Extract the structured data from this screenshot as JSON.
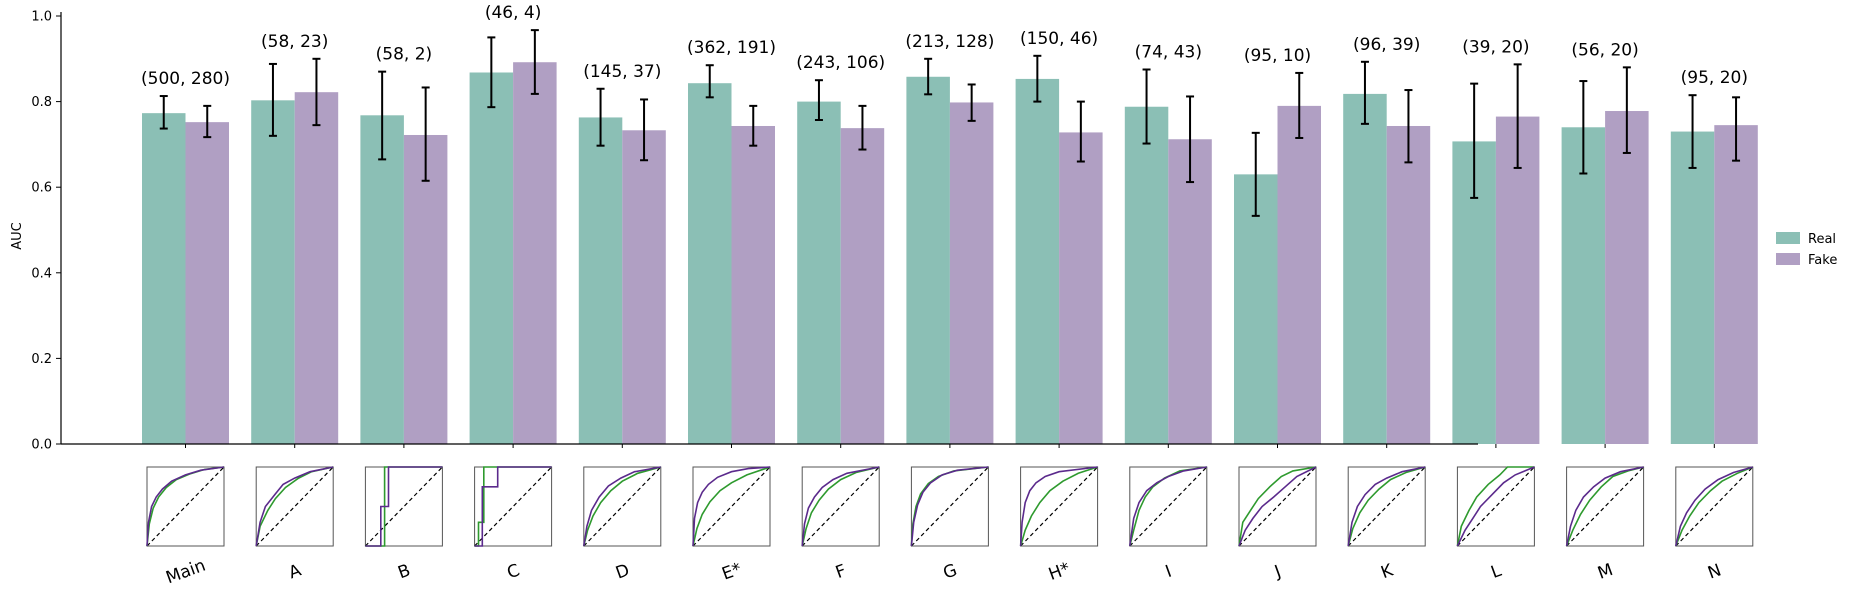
{
  "chart_data": {
    "type": "bar",
    "ylabel": "AUC",
    "xlabel": "",
    "ylim": [
      0,
      1.0
    ],
    "yticks": [
      "0.0",
      "0.2",
      "0.4",
      "0.6",
      "0.8",
      "1.0"
    ],
    "categories": [
      "Main",
      "A",
      "B",
      "C",
      "D",
      "E*",
      "F",
      "G",
      "H*",
      "I",
      "J",
      "K",
      "L",
      "M",
      "N"
    ],
    "annotations": [
      "(500, 280)",
      "(58, 23)",
      "(58, 2)",
      "(46, 4)",
      "(145, 37)",
      "(362, 191)",
      "(243, 106)",
      "(213, 128)",
      "(150, 46)",
      "(74, 43)",
      "(95, 10)",
      "(96, 39)",
      "(39, 20)",
      "(56, 20)",
      "(95, 20)"
    ],
    "series": [
      {
        "name": "Real",
        "color": "#8bbfb5",
        "values": [
          0.773,
          0.803,
          0.768,
          0.868,
          0.763,
          0.843,
          0.8,
          0.858,
          0.853,
          0.788,
          0.63,
          0.818,
          0.707,
          0.74,
          0.73
        ],
        "err_low": [
          0.737,
          0.72,
          0.665,
          0.787,
          0.697,
          0.81,
          0.757,
          0.817,
          0.8,
          0.702,
          0.533,
          0.748,
          0.575,
          0.632,
          0.645
        ],
        "err_high": [
          0.813,
          0.888,
          0.87,
          0.95,
          0.83,
          0.885,
          0.85,
          0.9,
          0.907,
          0.875,
          0.727,
          0.893,
          0.842,
          0.848,
          0.815
        ]
      },
      {
        "name": "Fake",
        "color": "#b09fc3",
        "values": [
          0.752,
          0.822,
          0.722,
          0.892,
          0.733,
          0.743,
          0.738,
          0.798,
          0.728,
          0.712,
          0.79,
          0.743,
          0.765,
          0.778,
          0.745
        ],
        "err_low": [
          0.717,
          0.745,
          0.615,
          0.818,
          0.663,
          0.697,
          0.688,
          0.755,
          0.66,
          0.612,
          0.715,
          0.658,
          0.645,
          0.68,
          0.662
        ],
        "err_high": [
          0.79,
          0.9,
          0.833,
          0.967,
          0.805,
          0.79,
          0.79,
          0.84,
          0.8,
          0.812,
          0.867,
          0.827,
          0.887,
          0.88,
          0.81
        ]
      }
    ],
    "legend_position": "right",
    "grid": false,
    "roc_insets": {
      "diagonal": "dashed",
      "curves": [
        {
          "fake": [
            [
              0,
              0
            ],
            [
              0.02,
              0.3
            ],
            [
              0.06,
              0.5
            ],
            [
              0.12,
              0.62
            ],
            [
              0.2,
              0.72
            ],
            [
              0.32,
              0.82
            ],
            [
              0.5,
              0.9
            ],
            [
              0.7,
              0.96
            ],
            [
              1,
              1
            ]
          ],
          "real": [
            [
              0,
              0
            ],
            [
              0.03,
              0.28
            ],
            [
              0.08,
              0.48
            ],
            [
              0.15,
              0.62
            ],
            [
              0.25,
              0.74
            ],
            [
              0.38,
              0.84
            ],
            [
              0.55,
              0.91
            ],
            [
              0.75,
              0.97
            ],
            [
              1,
              1
            ]
          ]
        },
        {
          "fake": [
            [
              0,
              0
            ],
            [
              0.05,
              0.3
            ],
            [
              0.12,
              0.5
            ],
            [
              0.25,
              0.66
            ],
            [
              0.35,
              0.78
            ],
            [
              0.5,
              0.86
            ],
            [
              0.7,
              0.94
            ],
            [
              1,
              1
            ]
          ],
          "real": [
            [
              0,
              0
            ],
            [
              0.05,
              0.25
            ],
            [
              0.15,
              0.45
            ],
            [
              0.25,
              0.6
            ],
            [
              0.38,
              0.74
            ],
            [
              0.55,
              0.86
            ],
            [
              0.72,
              0.94
            ],
            [
              1,
              1
            ]
          ]
        },
        {
          "fake": [
            [
              0,
              0
            ],
            [
              0.2,
              0
            ],
            [
              0.2,
              0.5
            ],
            [
              0.3,
              0.5
            ],
            [
              0.3,
              1
            ],
            [
              1,
              1
            ]
          ],
          "real": [
            [
              0,
              0
            ],
            [
              0.25,
              0
            ],
            [
              0.25,
              1
            ],
            [
              1,
              1
            ]
          ]
        },
        {
          "fake": [
            [
              0,
              0
            ],
            [
              0.1,
              0
            ],
            [
              0.1,
              0.75
            ],
            [
              0.3,
              0.75
            ],
            [
              0.3,
              1
            ],
            [
              1,
              1
            ]
          ],
          "real": [
            [
              0,
              0
            ],
            [
              0.05,
              0
            ],
            [
              0.05,
              0.3
            ],
            [
              0.12,
              0.3
            ],
            [
              0.12,
              1
            ],
            [
              1,
              1
            ]
          ]
        },
        {
          "fake": [
            [
              0,
              0
            ],
            [
              0.04,
              0.25
            ],
            [
              0.1,
              0.45
            ],
            [
              0.2,
              0.62
            ],
            [
              0.32,
              0.76
            ],
            [
              0.48,
              0.86
            ],
            [
              0.66,
              0.94
            ],
            [
              1,
              1
            ]
          ],
          "real": [
            [
              0,
              0
            ],
            [
              0.05,
              0.2
            ],
            [
              0.12,
              0.38
            ],
            [
              0.22,
              0.55
            ],
            [
              0.35,
              0.7
            ],
            [
              0.5,
              0.82
            ],
            [
              0.7,
              0.92
            ],
            [
              1,
              1
            ]
          ]
        },
        {
          "fake": [
            [
              0,
              0
            ],
            [
              0.02,
              0.35
            ],
            [
              0.06,
              0.55
            ],
            [
              0.12,
              0.68
            ],
            [
              0.2,
              0.78
            ],
            [
              0.32,
              0.87
            ],
            [
              0.5,
              0.94
            ],
            [
              0.72,
              0.98
            ],
            [
              1,
              1
            ]
          ],
          "real": [
            [
              0,
              0
            ],
            [
              0.05,
              0.22
            ],
            [
              0.12,
              0.4
            ],
            [
              0.22,
              0.56
            ],
            [
              0.35,
              0.7
            ],
            [
              0.5,
              0.8
            ],
            [
              0.7,
              0.9
            ],
            [
              1,
              1
            ]
          ]
        },
        {
          "fake": [
            [
              0,
              0
            ],
            [
              0.03,
              0.28
            ],
            [
              0.08,
              0.48
            ],
            [
              0.16,
              0.62
            ],
            [
              0.26,
              0.74
            ],
            [
              0.4,
              0.84
            ],
            [
              0.58,
              0.92
            ],
            [
              1,
              1
            ]
          ],
          "real": [
            [
              0,
              0
            ],
            [
              0.05,
              0.22
            ],
            [
              0.12,
              0.42
            ],
            [
              0.22,
              0.58
            ],
            [
              0.34,
              0.72
            ],
            [
              0.5,
              0.84
            ],
            [
              0.7,
              0.93
            ],
            [
              1,
              1
            ]
          ]
        },
        {
          "fake": [
            [
              0,
              0
            ],
            [
              0.03,
              0.3
            ],
            [
              0.08,
              0.52
            ],
            [
              0.15,
              0.68
            ],
            [
              0.25,
              0.8
            ],
            [
              0.4,
              0.9
            ],
            [
              0.6,
              0.96
            ],
            [
              1,
              1
            ]
          ],
          "real": [
            [
              0,
              0
            ],
            [
              0.02,
              0.28
            ],
            [
              0.06,
              0.5
            ],
            [
              0.12,
              0.66
            ],
            [
              0.22,
              0.79
            ],
            [
              0.35,
              0.88
            ],
            [
              0.55,
              0.95
            ],
            [
              1,
              1
            ]
          ]
        },
        {
          "fake": [
            [
              0,
              0
            ],
            [
              0.02,
              0.3
            ],
            [
              0.06,
              0.55
            ],
            [
              0.12,
              0.7
            ],
            [
              0.2,
              0.8
            ],
            [
              0.32,
              0.88
            ],
            [
              0.5,
              0.94
            ],
            [
              1,
              1
            ]
          ],
          "real": [
            [
              0,
              0
            ],
            [
              0.06,
              0.2
            ],
            [
              0.14,
              0.38
            ],
            [
              0.25,
              0.55
            ],
            [
              0.38,
              0.7
            ],
            [
              0.55,
              0.82
            ],
            [
              0.75,
              0.92
            ],
            [
              1,
              1
            ]
          ]
        },
        {
          "fake": [
            [
              0,
              0
            ],
            [
              0.05,
              0.35
            ],
            [
              0.12,
              0.55
            ],
            [
              0.22,
              0.7
            ],
            [
              0.35,
              0.8
            ],
            [
              0.5,
              0.88
            ],
            [
              0.7,
              0.95
            ],
            [
              1,
              1
            ]
          ],
          "real": [
            [
              0,
              0
            ],
            [
              0.05,
              0.2
            ],
            [
              0.12,
              0.45
            ],
            [
              0.2,
              0.62
            ],
            [
              0.3,
              0.75
            ],
            [
              0.45,
              0.86
            ],
            [
              0.65,
              0.95
            ],
            [
              1,
              1
            ]
          ]
        },
        {
          "fake": [
            [
              0,
              0
            ],
            [
              0.08,
              0.2
            ],
            [
              0.18,
              0.35
            ],
            [
              0.3,
              0.5
            ],
            [
              0.45,
              0.62
            ],
            [
              0.6,
              0.75
            ],
            [
              0.75,
              0.88
            ],
            [
              1,
              1
            ]
          ],
          "real": [
            [
              0,
              0
            ],
            [
              0.05,
              0.3
            ],
            [
              0.15,
              0.45
            ],
            [
              0.25,
              0.6
            ],
            [
              0.4,
              0.75
            ],
            [
              0.55,
              0.88
            ],
            [
              0.7,
              0.95
            ],
            [
              1,
              1
            ]
          ]
        },
        {
          "fake": [
            [
              0,
              0
            ],
            [
              0.05,
              0.3
            ],
            [
              0.12,
              0.5
            ],
            [
              0.22,
              0.65
            ],
            [
              0.35,
              0.78
            ],
            [
              0.5,
              0.86
            ],
            [
              0.7,
              0.94
            ],
            [
              1,
              1
            ]
          ],
          "real": [
            [
              0,
              0
            ],
            [
              0.06,
              0.22
            ],
            [
              0.15,
              0.42
            ],
            [
              0.26,
              0.58
            ],
            [
              0.4,
              0.72
            ],
            [
              0.55,
              0.84
            ],
            [
              0.75,
              0.93
            ],
            [
              1,
              1
            ]
          ]
        },
        {
          "fake": [
            [
              0,
              0
            ],
            [
              0.1,
              0.2
            ],
            [
              0.2,
              0.35
            ],
            [
              0.3,
              0.5
            ],
            [
              0.45,
              0.65
            ],
            [
              0.6,
              0.8
            ],
            [
              0.75,
              0.9
            ],
            [
              1,
              1
            ]
          ],
          "real": [
            [
              0,
              0
            ],
            [
              0.05,
              0.25
            ],
            [
              0.15,
              0.45
            ],
            [
              0.25,
              0.62
            ],
            [
              0.4,
              0.78
            ],
            [
              0.55,
              0.9
            ],
            [
              0.65,
              1
            ],
            [
              1,
              1
            ]
          ]
        },
        {
          "fake": [
            [
              0,
              0
            ],
            [
              0.05,
              0.25
            ],
            [
              0.12,
              0.45
            ],
            [
              0.22,
              0.62
            ],
            [
              0.35,
              0.75
            ],
            [
              0.5,
              0.86
            ],
            [
              0.7,
              0.94
            ],
            [
              1,
              1
            ]
          ],
          "real": [
            [
              0,
              0
            ],
            [
              0.08,
              0.2
            ],
            [
              0.18,
              0.4
            ],
            [
              0.3,
              0.58
            ],
            [
              0.45,
              0.75
            ],
            [
              0.6,
              0.88
            ],
            [
              0.8,
              0.95
            ],
            [
              1,
              1
            ]
          ]
        },
        {
          "fake": [
            [
              0,
              0
            ],
            [
              0.06,
              0.25
            ],
            [
              0.14,
              0.42
            ],
            [
              0.25,
              0.58
            ],
            [
              0.38,
              0.72
            ],
            [
              0.55,
              0.84
            ],
            [
              0.75,
              0.93
            ],
            [
              1,
              1
            ]
          ],
          "real": [
            [
              0,
              0
            ],
            [
              0.08,
              0.2
            ],
            [
              0.18,
              0.38
            ],
            [
              0.3,
              0.55
            ],
            [
              0.45,
              0.7
            ],
            [
              0.6,
              0.82
            ],
            [
              0.8,
              0.92
            ],
            [
              1,
              1
            ]
          ]
        }
      ],
      "fake_line_color": "#5b2a8c",
      "real_line_color": "#2e9a2e"
    }
  }
}
